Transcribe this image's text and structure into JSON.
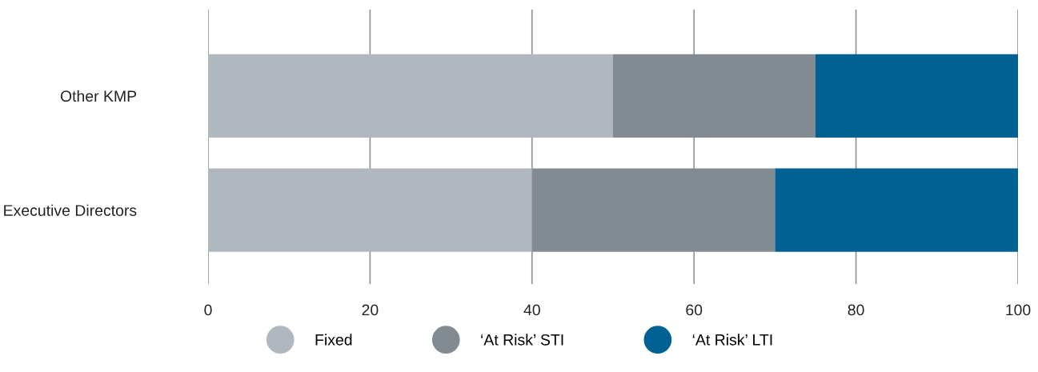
{
  "chart_data": {
    "type": "bar",
    "orientation": "horizontal",
    "stacked": true,
    "categories": [
      "Other KMP",
      "Executive Directors"
    ],
    "series": [
      {
        "name": "Fixed",
        "color": "#b0b7be",
        "values": [
          50,
          40
        ]
      },
      {
        "name": "‘At Risk’ STI",
        "color": "#838b92",
        "values": [
          25,
          30
        ]
      },
      {
        "name": "‘At Risk’ LTI",
        "color": "#006192",
        "values": [
          25,
          30
        ]
      }
    ],
    "xlim": [
      0,
      100
    ],
    "xticks": [
      0,
      20,
      40,
      60,
      80,
      100
    ],
    "grid": "x",
    "legend": "bottom"
  }
}
